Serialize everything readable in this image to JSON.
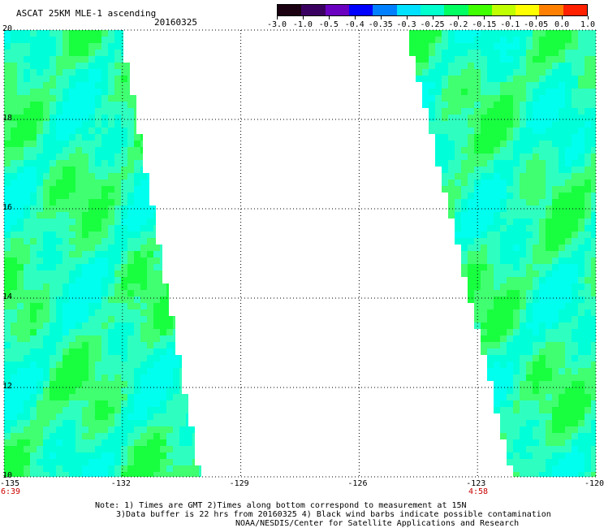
{
  "header": {
    "title": "ASCAT 25KM MLE-1 ascending",
    "date": "20160325"
  },
  "colorbar": {
    "labels": [
      "-3.0",
      "-1.0",
      "-0.5",
      "-0.4",
      "-0.35",
      "-0.3",
      "-0.25",
      "-0.2",
      "-0.15",
      "-0.1",
      "-0.05",
      "0.0",
      "1.0"
    ],
    "colors": [
      "#1a0010",
      "#3a0060",
      "#6a00c0",
      "#0000ff",
      "#0080ff",
      "#00e0ff",
      "#00ffcc",
      "#00ff60",
      "#40ff00",
      "#c0ff00",
      "#ffff00",
      "#ff8000",
      "#ff2000"
    ]
  },
  "map_data": {
    "lon_range": [
      -135,
      -120
    ],
    "lat_range": [
      10,
      20
    ],
    "x_ticks": [
      "-135",
      "-132",
      "-129",
      "-126",
      "-123",
      "-120"
    ],
    "y_ticks": [
      "20",
      "18",
      "16",
      "14",
      "12",
      "10"
    ],
    "swath_colors": {
      "cyan": "#00ffd8",
      "aqua": "#2effc0",
      "green": "#18ff40",
      "lime": "#40ff70",
      "teal": "#00ffee"
    }
  },
  "time_labels": [
    "6:39",
    "4:58"
  ],
  "notes": [
    "Note: 1) Times are GMT 2)Times along bottom correspond to measurement at 15N",
    "3)Data buffer is 22 hrs from 20160325 4) Black wind barbs indicate possible contamination",
    "NOAA/NESDIS/Center for Satellite Applications and Research"
  ]
}
